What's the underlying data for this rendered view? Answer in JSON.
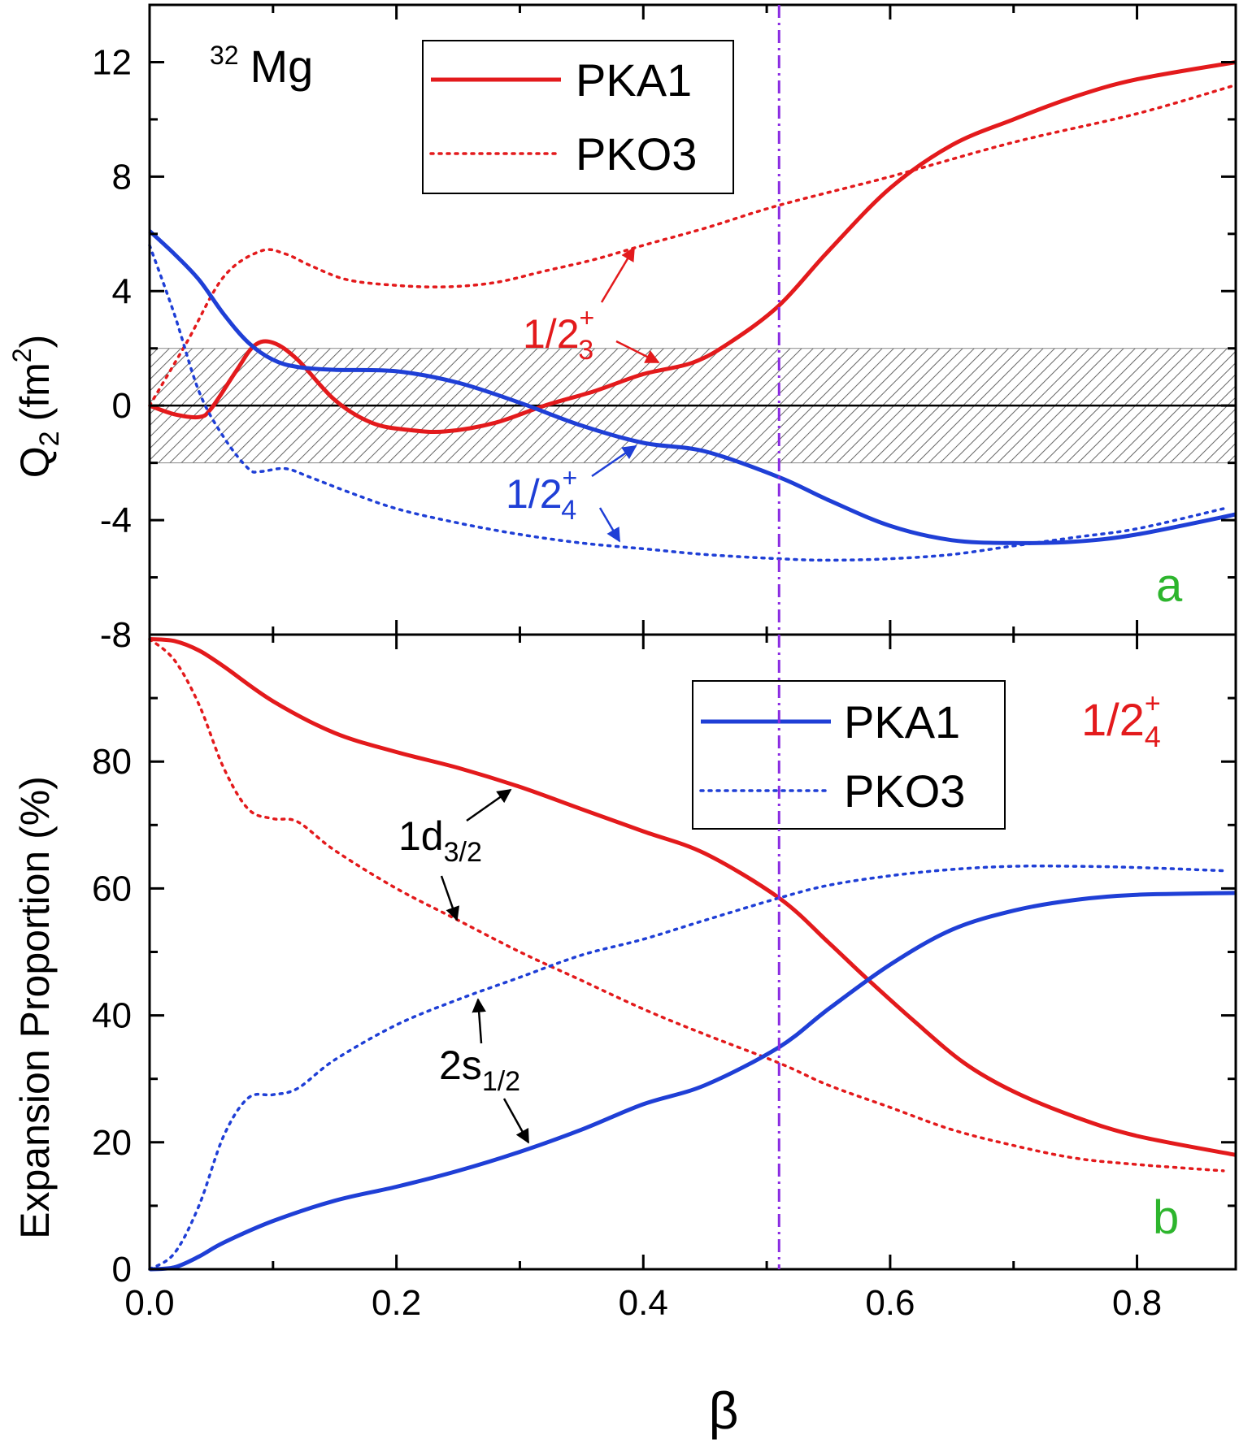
{
  "chart_data": [
    {
      "panel": "a",
      "type": "line",
      "nucleus": {
        "mass": "32",
        "element": "Mg"
      },
      "panel_label": "a",
      "xlim": [
        0.0,
        0.88
      ],
      "ylim": [
        -8,
        14
      ],
      "ylabel": {
        "main": "Q",
        "sub": "2",
        "unit": "(fm",
        "sup": "2",
        "close": ")"
      },
      "yticks": [
        {
          "v": -8,
          "label": "-8"
        },
        {
          "v": -4,
          "label": "-4"
        },
        {
          "v": 0,
          "label": "0"
        },
        {
          "v": 4,
          "label": "4"
        },
        {
          "v": 8,
          "label": "8"
        },
        {
          "v": 12,
          "label": "12"
        }
      ],
      "shaded_band": [
        -2,
        2
      ],
      "reference_line_beta": 0.51,
      "legend": [
        {
          "name": "PKA1",
          "style": "solid",
          "color": "#e31a1c"
        },
        {
          "name": "PKO3",
          "style": "dotted",
          "color": "#e31a1c"
        }
      ],
      "series": [
        {
          "name": "1/2_3^+ PKA1",
          "color": "#e31a1c",
          "style": "solid",
          "x": [
            0.0,
            0.02,
            0.04,
            0.05,
            0.07,
            0.085,
            0.1,
            0.12,
            0.15,
            0.18,
            0.21,
            0.24,
            0.28,
            0.32,
            0.36,
            0.4,
            0.44,
            0.47,
            0.51,
            0.55,
            0.6,
            0.65,
            0.7,
            0.75,
            0.8,
            0.88
          ],
          "y": [
            0.0,
            -0.3,
            -0.4,
            -0.1,
            1.2,
            2.1,
            2.2,
            1.6,
            0.2,
            -0.6,
            -0.85,
            -0.9,
            -0.6,
            0.0,
            0.5,
            1.1,
            1.5,
            2.2,
            3.5,
            5.4,
            7.6,
            9.1,
            10.0,
            10.8,
            11.4,
            12.0
          ]
        },
        {
          "name": "1/2_3^+ PKO3",
          "color": "#e31a1c",
          "style": "dotted",
          "x": [
            0.0,
            0.03,
            0.06,
            0.09,
            0.11,
            0.13,
            0.16,
            0.2,
            0.24,
            0.28,
            0.32,
            0.36,
            0.4,
            0.45,
            0.51,
            0.6,
            0.7,
            0.8,
            0.88
          ],
          "y": [
            0.0,
            2.2,
            4.5,
            5.4,
            5.3,
            4.9,
            4.4,
            4.2,
            4.15,
            4.3,
            4.7,
            5.1,
            5.6,
            6.2,
            7.0,
            8.0,
            9.2,
            10.2,
            11.2
          ]
        },
        {
          "name": "1/2_4^+ PKA1",
          "color": "#1f3fd6",
          "style": "solid",
          "x": [
            0.0,
            0.02,
            0.04,
            0.06,
            0.08,
            0.1,
            0.12,
            0.15,
            0.2,
            0.25,
            0.3,
            0.35,
            0.4,
            0.45,
            0.51,
            0.55,
            0.6,
            0.65,
            0.7,
            0.75,
            0.8,
            0.88
          ],
          "y": [
            6.1,
            5.3,
            4.4,
            3.2,
            2.2,
            1.6,
            1.35,
            1.25,
            1.2,
            0.8,
            0.1,
            -0.7,
            -1.3,
            -1.6,
            -2.5,
            -3.3,
            -4.2,
            -4.7,
            -4.8,
            -4.75,
            -4.5,
            -3.8
          ]
        },
        {
          "name": "1/2_4^+ PKO3",
          "color": "#1f3fd6",
          "style": "dotted",
          "x": [
            0.0,
            0.02,
            0.04,
            0.06,
            0.08,
            0.09,
            0.11,
            0.13,
            0.16,
            0.2,
            0.25,
            0.3,
            0.35,
            0.4,
            0.45,
            0.51,
            0.55,
            0.6,
            0.65,
            0.7,
            0.75,
            0.8,
            0.87
          ],
          "y": [
            5.6,
            3.2,
            0.5,
            -1.1,
            -2.2,
            -2.3,
            -2.2,
            -2.5,
            -3.0,
            -3.6,
            -4.1,
            -4.5,
            -4.8,
            -5.0,
            -5.2,
            -5.35,
            -5.4,
            -5.35,
            -5.2,
            -4.9,
            -4.6,
            -4.3,
            -3.6
          ]
        }
      ],
      "annotations": [
        {
          "label": "1/2",
          "sub": "3",
          "sup": "+",
          "color": "#e31a1c",
          "arrows_to": [
            [
              0.4,
              5.5
            ],
            [
              0.42,
              1.4
            ]
          ]
        },
        {
          "label": "1/2",
          "sub": "4",
          "sup": "+",
          "color": "#1f3fd6",
          "arrows_to": [
            [
              0.4,
              -1.3
            ],
            [
              0.39,
              -4.8
            ]
          ]
        }
      ]
    },
    {
      "panel": "b",
      "type": "line",
      "state": {
        "label": "1/2",
        "sub": "4",
        "sup": "+"
      },
      "panel_label": "b",
      "xlim": [
        0.0,
        0.88
      ],
      "ylim": [
        0,
        100
      ],
      "xlabel": "β",
      "ylabel": "Expansion Proportion (%)",
      "xticks": [
        {
          "v": 0.0,
          "label": "0.0"
        },
        {
          "v": 0.2,
          "label": "0.2"
        },
        {
          "v": 0.4,
          "label": "0.4"
        },
        {
          "v": 0.6,
          "label": "0.6"
        },
        {
          "v": 0.8,
          "label": "0.8"
        }
      ],
      "yticks": [
        {
          "v": 0,
          "label": "0"
        },
        {
          "v": 20,
          "label": "20"
        },
        {
          "v": 40,
          "label": "40"
        },
        {
          "v": 60,
          "label": "60"
        },
        {
          "v": 80,
          "label": "80"
        }
      ],
      "reference_line_beta": 0.51,
      "legend": [
        {
          "name": "PKA1",
          "style": "solid",
          "color": "#1f3fd6"
        },
        {
          "name": "PKO3",
          "style": "dotted",
          "color": "#1f3fd6"
        }
      ],
      "series": [
        {
          "name": "1d3/2 PKA1",
          "color": "#e31a1c",
          "style": "solid",
          "x": [
            0.0,
            0.02,
            0.04,
            0.06,
            0.1,
            0.15,
            0.2,
            0.25,
            0.3,
            0.35,
            0.4,
            0.45,
            0.51,
            0.55,
            0.58,
            0.62,
            0.66,
            0.7,
            0.75,
            0.8,
            0.88
          ],
          "y": [
            99.3,
            99.0,
            97.5,
            95.0,
            89.5,
            84.5,
            81.5,
            79.0,
            76.0,
            72.5,
            69.0,
            65.5,
            58.5,
            51.5,
            46.0,
            39.0,
            32.5,
            28.0,
            24.0,
            21.0,
            18.0
          ]
        },
        {
          "name": "1d3/2 PKO3",
          "color": "#e31a1c",
          "style": "dotted",
          "x": [
            0.0,
            0.02,
            0.04,
            0.06,
            0.08,
            0.1,
            0.12,
            0.15,
            0.2,
            0.25,
            0.3,
            0.35,
            0.4,
            0.45,
            0.51,
            0.55,
            0.6,
            0.65,
            0.7,
            0.75,
            0.8,
            0.87
          ],
          "y": [
            99.3,
            96.0,
            89.0,
            79.0,
            72.5,
            71.0,
            70.5,
            66.0,
            60.0,
            55.0,
            50.0,
            45.5,
            41.0,
            37.0,
            32.5,
            29.0,
            25.5,
            22.0,
            19.5,
            17.5,
            16.5,
            15.5
          ]
        },
        {
          "name": "2s1/2 PKA1",
          "color": "#1f3fd6",
          "style": "solid",
          "x": [
            0.0,
            0.02,
            0.04,
            0.06,
            0.1,
            0.15,
            0.2,
            0.25,
            0.3,
            0.35,
            0.4,
            0.45,
            0.51,
            0.55,
            0.6,
            0.65,
            0.7,
            0.75,
            0.8,
            0.88
          ],
          "y": [
            0.0,
            0.3,
            2.0,
            4.2,
            7.6,
            10.8,
            13.0,
            15.5,
            18.5,
            22.0,
            26.0,
            29.0,
            35.0,
            41.0,
            48.0,
            53.5,
            56.5,
            58.2,
            59.0,
            59.3
          ]
        },
        {
          "name": "2s1/2 PKO3",
          "color": "#1f3fd6",
          "style": "dotted",
          "x": [
            0.0,
            0.02,
            0.04,
            0.06,
            0.08,
            0.1,
            0.12,
            0.15,
            0.2,
            0.25,
            0.3,
            0.35,
            0.4,
            0.45,
            0.51,
            0.55,
            0.6,
            0.65,
            0.7,
            0.75,
            0.8,
            0.87
          ],
          "y": [
            0.0,
            2.5,
            10.0,
            21.0,
            27.0,
            27.5,
            28.5,
            33.0,
            38.5,
            42.5,
            46.0,
            49.5,
            52.0,
            55.0,
            58.5,
            60.5,
            62.0,
            63.0,
            63.5,
            63.5,
            63.3,
            62.8
          ]
        }
      ],
      "annotations": [
        {
          "label": "1d",
          "sub": "3/2",
          "color": "#000000",
          "arrows_to": [
            [
              0.305,
              76.5
            ],
            [
              0.255,
              55.0
            ]
          ]
        },
        {
          "label": "2s",
          "sub": "1/2",
          "color": "#000000",
          "arrows_to": [
            [
              0.27,
              43.5
            ],
            [
              0.31,
              19.5
            ]
          ]
        }
      ]
    }
  ]
}
